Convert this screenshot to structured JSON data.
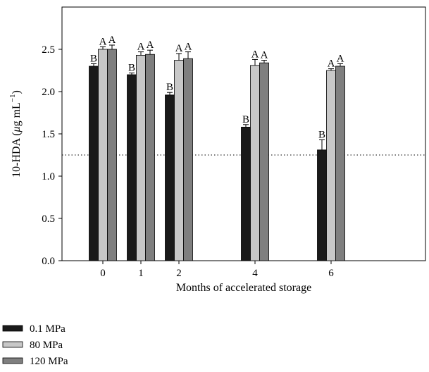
{
  "chart_data": {
    "type": "bar",
    "title": "",
    "xlabel": "Months of accelerated storage",
    "ylabel_main": "10-HDA (",
    "ylabel_mu": "μ",
    "ylabel_unit": "g mL",
    "ylabel_sup": "−1",
    "ylabel_close": ")",
    "ylim": [
      0,
      3.0
    ],
    "yticks": [
      "0.0",
      "0.5",
      "1.0",
      "1.5",
      "2.0",
      "2.5"
    ],
    "categories": [
      "0",
      "1",
      "2",
      "4",
      "6"
    ],
    "x": [
      0,
      1,
      2,
      4,
      6
    ],
    "reference_line": 1.25,
    "series": [
      {
        "name": "0.1 MPa",
        "color": "#1a1a1a",
        "values": [
          2.3,
          2.2,
          1.96,
          1.58,
          1.31
        ],
        "errors": [
          0.03,
          0.02,
          0.03,
          0.03,
          0.12
        ],
        "letters": [
          "B",
          "B",
          "B",
          "B",
          "B"
        ]
      },
      {
        "name": "80 MPa",
        "color": "#c8c8c8",
        "values": [
          2.5,
          2.43,
          2.37,
          2.31,
          2.25
        ],
        "errors": [
          0.03,
          0.04,
          0.08,
          0.07,
          0.02
        ],
        "letters": [
          "A",
          "A",
          "A",
          "A",
          "A"
        ]
      },
      {
        "name": "120 MPa",
        "color": "#7f7f7f",
        "values": [
          2.5,
          2.44,
          2.39,
          2.34,
          2.3
        ],
        "errors": [
          0.05,
          0.05,
          0.08,
          0.03,
          0.03
        ],
        "letters": [
          "A",
          "A",
          "A",
          "A",
          "A"
        ]
      }
    ],
    "legend_position": "bottom-left"
  }
}
